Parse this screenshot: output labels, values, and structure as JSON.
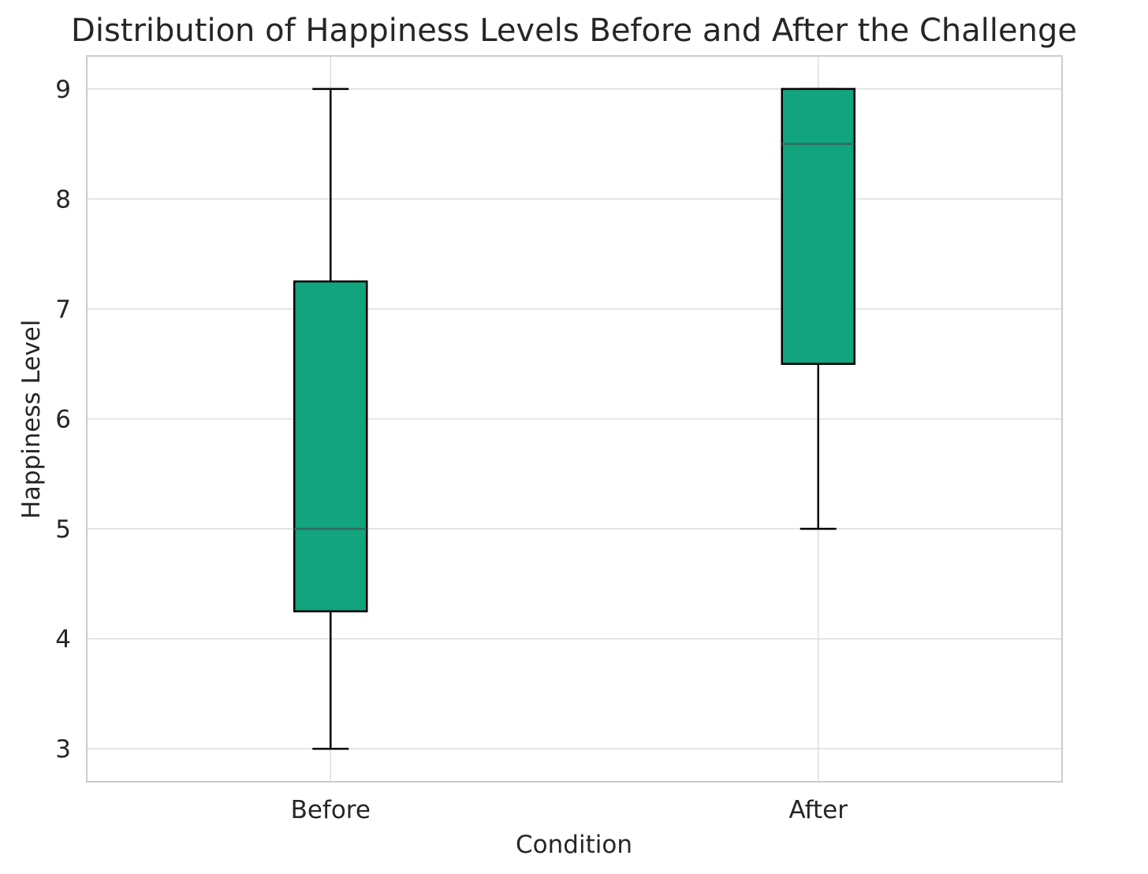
{
  "chart_data": {
    "type": "box",
    "title": "Distribution of Happiness Levels Before and After the Challenge",
    "xlabel": "Condition",
    "ylabel": "Happiness Level",
    "ylim": [
      2.7,
      9.3
    ],
    "yticks": [
      3,
      4,
      5,
      6,
      7,
      8,
      9
    ],
    "grid": true,
    "categories": [
      "Before",
      "After"
    ],
    "boxes": [
      {
        "category": "Before",
        "whisker_low": 3,
        "q1": 4.25,
        "median": 5,
        "q3": 7.25,
        "whisker_high": 9
      },
      {
        "category": "After",
        "whisker_low": 5,
        "q1": 6.5,
        "median": 8.5,
        "q3": 9,
        "whisker_high": 9
      }
    ],
    "colors": {
      "box_fill": "#12a37f",
      "box_edge": "#000000",
      "median_line": "#2f6b5c",
      "grid": "#dcdcdc",
      "frame": "#cccccc"
    }
  }
}
